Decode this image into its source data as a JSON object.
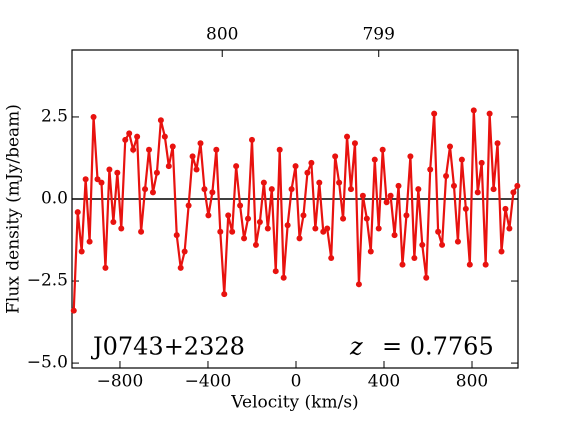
{
  "chart_data": {
    "type": "line",
    "xlabel": "Velocity (km/s)",
    "ylabel": "Flux density (mJy/beam)",
    "annotations": [
      "J0743+2328",
      "z",
      "= 0.7765"
    ],
    "x": [
      -1010,
      -992,
      -974,
      -956,
      -938,
      -920,
      -902,
      -884,
      -866,
      -848,
      -830,
      -812,
      -794,
      -776,
      -758,
      -740,
      -722,
      -704,
      -686,
      -668,
      -650,
      -632,
      -614,
      -596,
      -578,
      -560,
      -542,
      -524,
      -506,
      -488,
      -470,
      -452,
      -434,
      -416,
      -398,
      -380,
      -362,
      -344,
      -326,
      -308,
      -290,
      -272,
      -254,
      -236,
      -218,
      -200,
      -182,
      -164,
      -146,
      -128,
      -110,
      -92,
      -74,
      -56,
      -38,
      -20,
      -2,
      16,
      34,
      52,
      70,
      88,
      106,
      124,
      142,
      160,
      178,
      196,
      214,
      232,
      250,
      268,
      286,
      304,
      322,
      340,
      358,
      376,
      394,
      412,
      430,
      448,
      466,
      484,
      502,
      520,
      538,
      556,
      574,
      592,
      610,
      628,
      646,
      664,
      682,
      700,
      718,
      736,
      754,
      772,
      790,
      808,
      826,
      844,
      862,
      880,
      898,
      916,
      934,
      952,
      970,
      988,
      1006
    ],
    "series": [
      {
        "color": "#e8120f",
        "values": [
          -3.4,
          -0.4,
          -1.6,
          0.6,
          -1.3,
          2.5,
          0.6,
          0.5,
          -2.1,
          0.9,
          -0.7,
          0.8,
          -0.9,
          1.8,
          2.0,
          1.5,
          1.9,
          -1.0,
          0.3,
          1.5,
          0.2,
          0.8,
          2.4,
          1.9,
          1.0,
          1.6,
          -1.1,
          -2.1,
          -1.6,
          -0.2,
          1.3,
          0.9,
          1.7,
          0.3,
          -0.5,
          0.2,
          1.5,
          -1.0,
          -2.9,
          -0.5,
          -1.0,
          1.0,
          -0.2,
          -1.2,
          -0.6,
          1.8,
          -1.4,
          -0.7,
          0.5,
          -0.9,
          0.3,
          -2.2,
          1.5,
          -2.4,
          -0.8,
          0.3,
          1.0,
          -1.2,
          -0.5,
          0.8,
          1.1,
          -0.9,
          0.5,
          -1.0,
          -0.9,
          -1.8,
          1.3,
          0.5,
          -0.6,
          1.9,
          0.3,
          1.7,
          -2.6,
          0.1,
          -0.6,
          -1.6,
          1.2,
          -0.9,
          1.5,
          -0.1,
          0.1,
          -1.1,
          0.4,
          -2.0,
          -0.5,
          1.3,
          -1.8,
          0.3,
          -1.4,
          -2.4,
          0.9,
          2.6,
          -1.0,
          -1.4,
          0.7,
          1.6,
          0.4,
          -1.3,
          1.2,
          -0.3,
          -2.0,
          2.7,
          0.2,
          1.1,
          -2.0,
          2.6,
          0.3,
          1.7,
          -1.6,
          -0.3,
          -0.9,
          0.2,
          0.4
        ]
      }
    ],
    "hline": 0,
    "xlim": [
      -1018,
      1009
    ],
    "ylim": [
      -5.15,
      4.54
    ],
    "x2lim": [
      800.96,
      798.11
    ],
    "xticks": [
      {
        "value": -800,
        "label": "−800"
      },
      {
        "value": -400,
        "label": "−400"
      },
      0,
      400,
      800
    ],
    "yticks": [
      {
        "value": -5,
        "label": "−5.0"
      },
      {
        "value": -2.5,
        "label": "−2.5"
      },
      {
        "value": 0,
        "label": "0.0"
      },
      2.5
    ],
    "x2ticks": [
      800,
      799
    ]
  }
}
